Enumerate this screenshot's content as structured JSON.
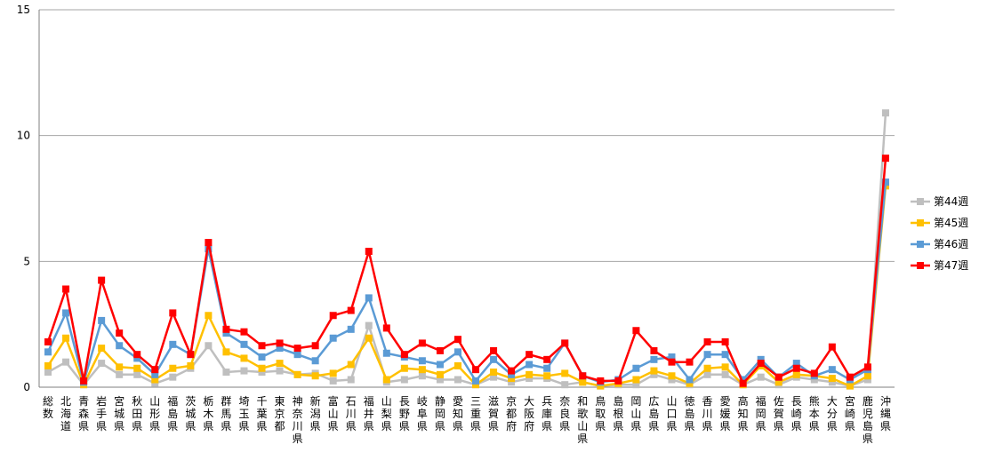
{
  "chart_data": {
    "type": "line",
    "title": "",
    "xlabel": "",
    "ylabel": "",
    "ylim": [
      0,
      15
    ],
    "yticks": [
      0,
      5,
      10,
      15
    ],
    "grid": true,
    "legend_position": "right",
    "categories": [
      "総数",
      "北海道",
      "青森県",
      "岩手県",
      "宮城県",
      "秋田県",
      "山形県",
      "福島県",
      "茨城県",
      "栃木県",
      "群馬県",
      "埼玉県",
      "千葉県",
      "東京都",
      "神奈川県",
      "新潟県",
      "富山県",
      "石川県",
      "福井県",
      "山梨県",
      "長野県",
      "岐阜県",
      "静岡県",
      "愛知県",
      "三重県",
      "滋賀県",
      "京都府",
      "大阪府",
      "兵庫県",
      "奈良県",
      "和歌山県",
      "鳥取県",
      "島根県",
      "岡山県",
      "広島県",
      "山口県",
      "徳島県",
      "香川県",
      "愛媛県",
      "高知県",
      "福岡県",
      "佐賀県",
      "長崎県",
      "熊本県",
      "大分県",
      "宮崎県",
      "鹿児島県",
      "沖縄県"
    ],
    "series": [
      {
        "name": "第44週",
        "color": "#bfbfbf",
        "values": [
          0.6,
          1.0,
          0.1,
          0.95,
          0.5,
          0.5,
          0.15,
          0.4,
          0.75,
          1.65,
          0.6,
          0.65,
          0.6,
          0.65,
          0.5,
          0.55,
          0.25,
          0.3,
          2.45,
          0.2,
          0.3,
          0.45,
          0.3,
          0.3,
          0.1,
          0.4,
          0.2,
          0.35,
          0.35,
          0.1,
          0.2,
          0.05,
          0.1,
          0.1,
          0.5,
          0.3,
          0.1,
          0.5,
          0.5,
          0.1,
          0.4,
          0.1,
          0.4,
          0.3,
          0.2,
          0.05,
          0.3,
          10.9
        ]
      },
      {
        "name": "第45週",
        "color": "#ffc000",
        "values": [
          0.85,
          1.95,
          0.1,
          1.55,
          0.8,
          0.75,
          0.3,
          0.75,
          0.85,
          2.85,
          1.4,
          1.15,
          0.75,
          0.95,
          0.5,
          0.45,
          0.55,
          0.9,
          1.95,
          0.3,
          0.75,
          0.7,
          0.5,
          0.85,
          0.1,
          0.6,
          0.35,
          0.5,
          0.45,
          0.55,
          0.2,
          0.05,
          0.15,
          0.3,
          0.65,
          0.45,
          0.15,
          0.75,
          0.8,
          0.1,
          0.85,
          0.2,
          0.5,
          0.45,
          0.35,
          0.05,
          0.45,
          8.0
        ]
      },
      {
        "name": "第46週",
        "color": "#5b9bd5",
        "values": [
          1.4,
          2.95,
          0.2,
          2.65,
          1.65,
          1.15,
          0.5,
          1.7,
          1.3,
          5.5,
          2.15,
          1.7,
          1.2,
          1.55,
          1.3,
          1.05,
          1.95,
          2.3,
          3.55,
          1.35,
          1.2,
          1.05,
          0.9,
          1.4,
          0.25,
          1.1,
          0.5,
          0.9,
          0.75,
          1.75,
          0.45,
          0.2,
          0.3,
          0.75,
          1.1,
          1.2,
          0.3,
          1.3,
          1.3,
          0.3,
          1.1,
          0.4,
          0.95,
          0.45,
          0.7,
          0.3,
          0.7,
          8.15
        ]
      },
      {
        "name": "第47週",
        "color": "#ff0000",
        "values": [
          1.8,
          3.9,
          0.25,
          4.25,
          2.15,
          1.3,
          0.7,
          2.95,
          1.3,
          5.75,
          2.3,
          2.2,
          1.65,
          1.75,
          1.55,
          1.65,
          2.85,
          3.05,
          5.4,
          2.35,
          1.3,
          1.75,
          1.45,
          1.9,
          0.7,
          1.45,
          0.65,
          1.3,
          1.1,
          1.75,
          0.45,
          0.25,
          0.25,
          2.25,
          1.45,
          1.0,
          1.0,
          1.8,
          1.8,
          0.15,
          0.95,
          0.4,
          0.75,
          0.55,
          1.6,
          0.4,
          0.8,
          9.1
        ]
      }
    ]
  }
}
